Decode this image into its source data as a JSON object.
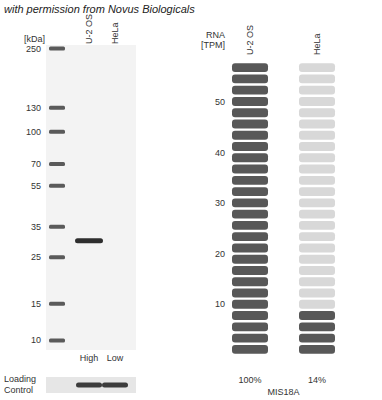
{
  "watermark": "with permission from Novus Biologicals",
  "blot": {
    "unit_label": "[kDa]",
    "log": true,
    "ylim": [
      9,
      260
    ],
    "markers": [
      250,
      130,
      100,
      70,
      55,
      35,
      25,
      15,
      10
    ],
    "lanes": [
      {
        "name": "U-2 OS",
        "level": "High",
        "bands": [
          30
        ]
      },
      {
        "name": "HeLa",
        "level": "Low",
        "bands": []
      }
    ]
  },
  "loading_control": {
    "label": "Loading Control"
  },
  "chart_data": {
    "type": "bar",
    "title": "MIS18A",
    "y_label": "RNA [TPM]",
    "categories": [
      "U-2 OS",
      "HeLa"
    ],
    "values": [
      58,
      8.2
    ],
    "percent_labels": [
      "100%",
      "14%"
    ],
    "colors": [
      "#585858",
      "#585858"
    ],
    "ylim": [
      0,
      58
    ],
    "yticks": [
      10,
      20,
      30,
      40,
      50
    ]
  }
}
